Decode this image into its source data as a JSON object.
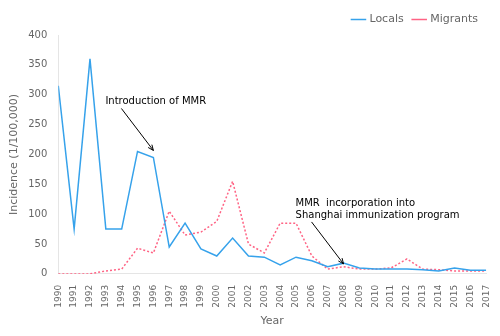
{
  "chart_data": {
    "type": "line",
    "x": [
      1990,
      1991,
      1992,
      1993,
      1994,
      1995,
      1996,
      1997,
      1998,
      1999,
      2000,
      2001,
      2002,
      2003,
      2004,
      2005,
      2006,
      2007,
      2008,
      2009,
      2010,
      2011,
      2012,
      2013,
      2014,
      2015,
      2016,
      2017
    ],
    "series": [
      {
        "name": "Locals",
        "line_style": "solid",
        "values": [
          315,
          75,
          360,
          75,
          75,
          205,
          195,
          45,
          85,
          42,
          30,
          60,
          30,
          28,
          15,
          28,
          22,
          12,
          18,
          10,
          8,
          8,
          8,
          7,
          5,
          10,
          6,
          6
        ]
      },
      {
        "name": "Migrants",
        "line_style": "dotted",
        "values": [
          0,
          0,
          0,
          5,
          8,
          43,
          35,
          105,
          65,
          70,
          88,
          155,
          50,
          35,
          85,
          85,
          30,
          8,
          12,
          8,
          8,
          10,
          25,
          8,
          7,
          5,
          5,
          5
        ]
      }
    ],
    "xlabel": "Year",
    "ylabel": "Incidence (1/100,000)",
    "xlim": [
      1990,
      2017
    ],
    "xticks": [
      1990,
      1991,
      1992,
      1993,
      1994,
      1995,
      1996,
      1997,
      1998,
      1999,
      2000,
      2001,
      2002,
      2003,
      2004,
      2005,
      2006,
      2007,
      2008,
      2009,
      2010,
      2011,
      2012,
      2013,
      2014,
      2015,
      2016,
      2017
    ],
    "ylim": [
      0,
      400
    ],
    "yticks": [
      0,
      50,
      100,
      150,
      200,
      250,
      300,
      350,
      400
    ],
    "grid": false,
    "legend": "upper right",
    "annotations": [
      {
        "text": "Introduction of MMR",
        "x": 1996,
        "y": 205
      },
      {
        "text": "MMR  incorporation into\nShanghai immunization program",
        "x": 2008,
        "y": 15
      }
    ]
  }
}
